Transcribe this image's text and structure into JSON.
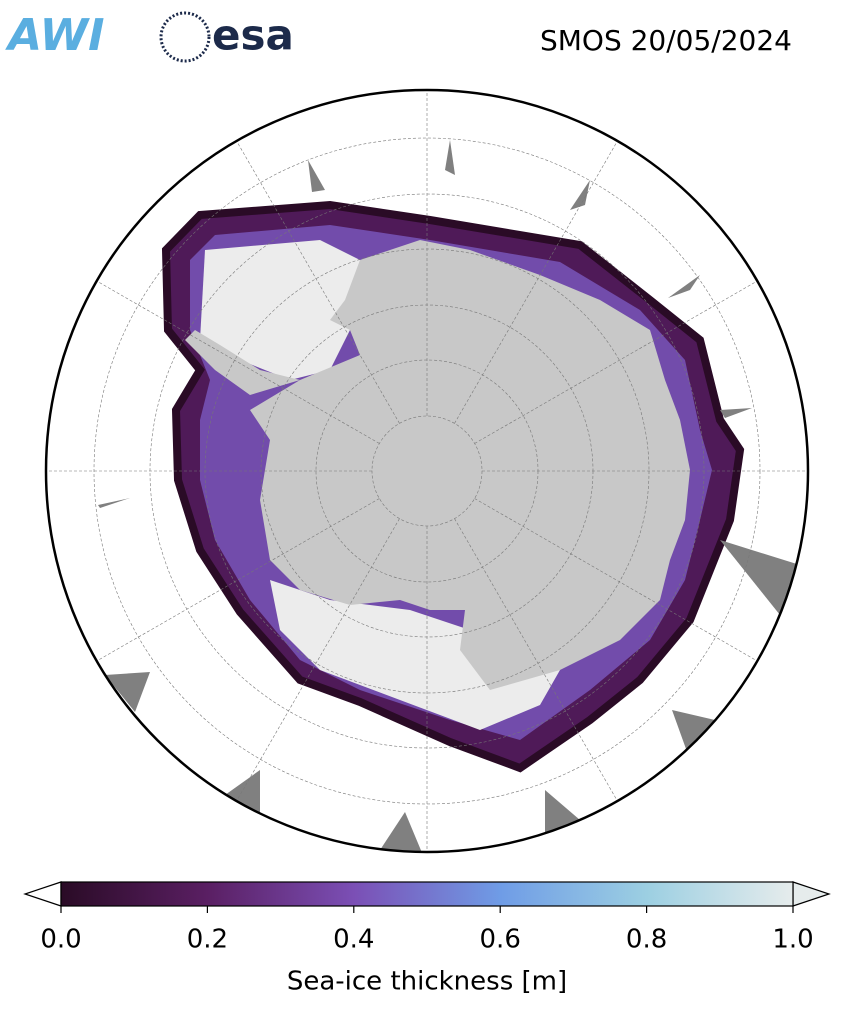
{
  "header": {
    "logos": [
      "AWI",
      "esa"
    ],
    "title": "SMOS 20/05/2024"
  },
  "colorbar": {
    "label": "Sea-ice thickness [m]",
    "lim": [
      0,
      1
    ],
    "ticks": [
      {
        "value": 0,
        "label": "0.0"
      },
      {
        "value": 0.2,
        "label": "0.2"
      },
      {
        "value": 0.4,
        "label": "0.4"
      },
      {
        "value": 0.6,
        "label": "0.6"
      },
      {
        "value": 0.8,
        "label": "0.8"
      },
      {
        "value": 1,
        "label": "1.0"
      }
    ],
    "colors": [
      "#2a0b26",
      "#5a1f63",
      "#7b4fb5",
      "#6f9ce6",
      "#9ccfe2",
      "#e6ecec"
    ]
  }
}
